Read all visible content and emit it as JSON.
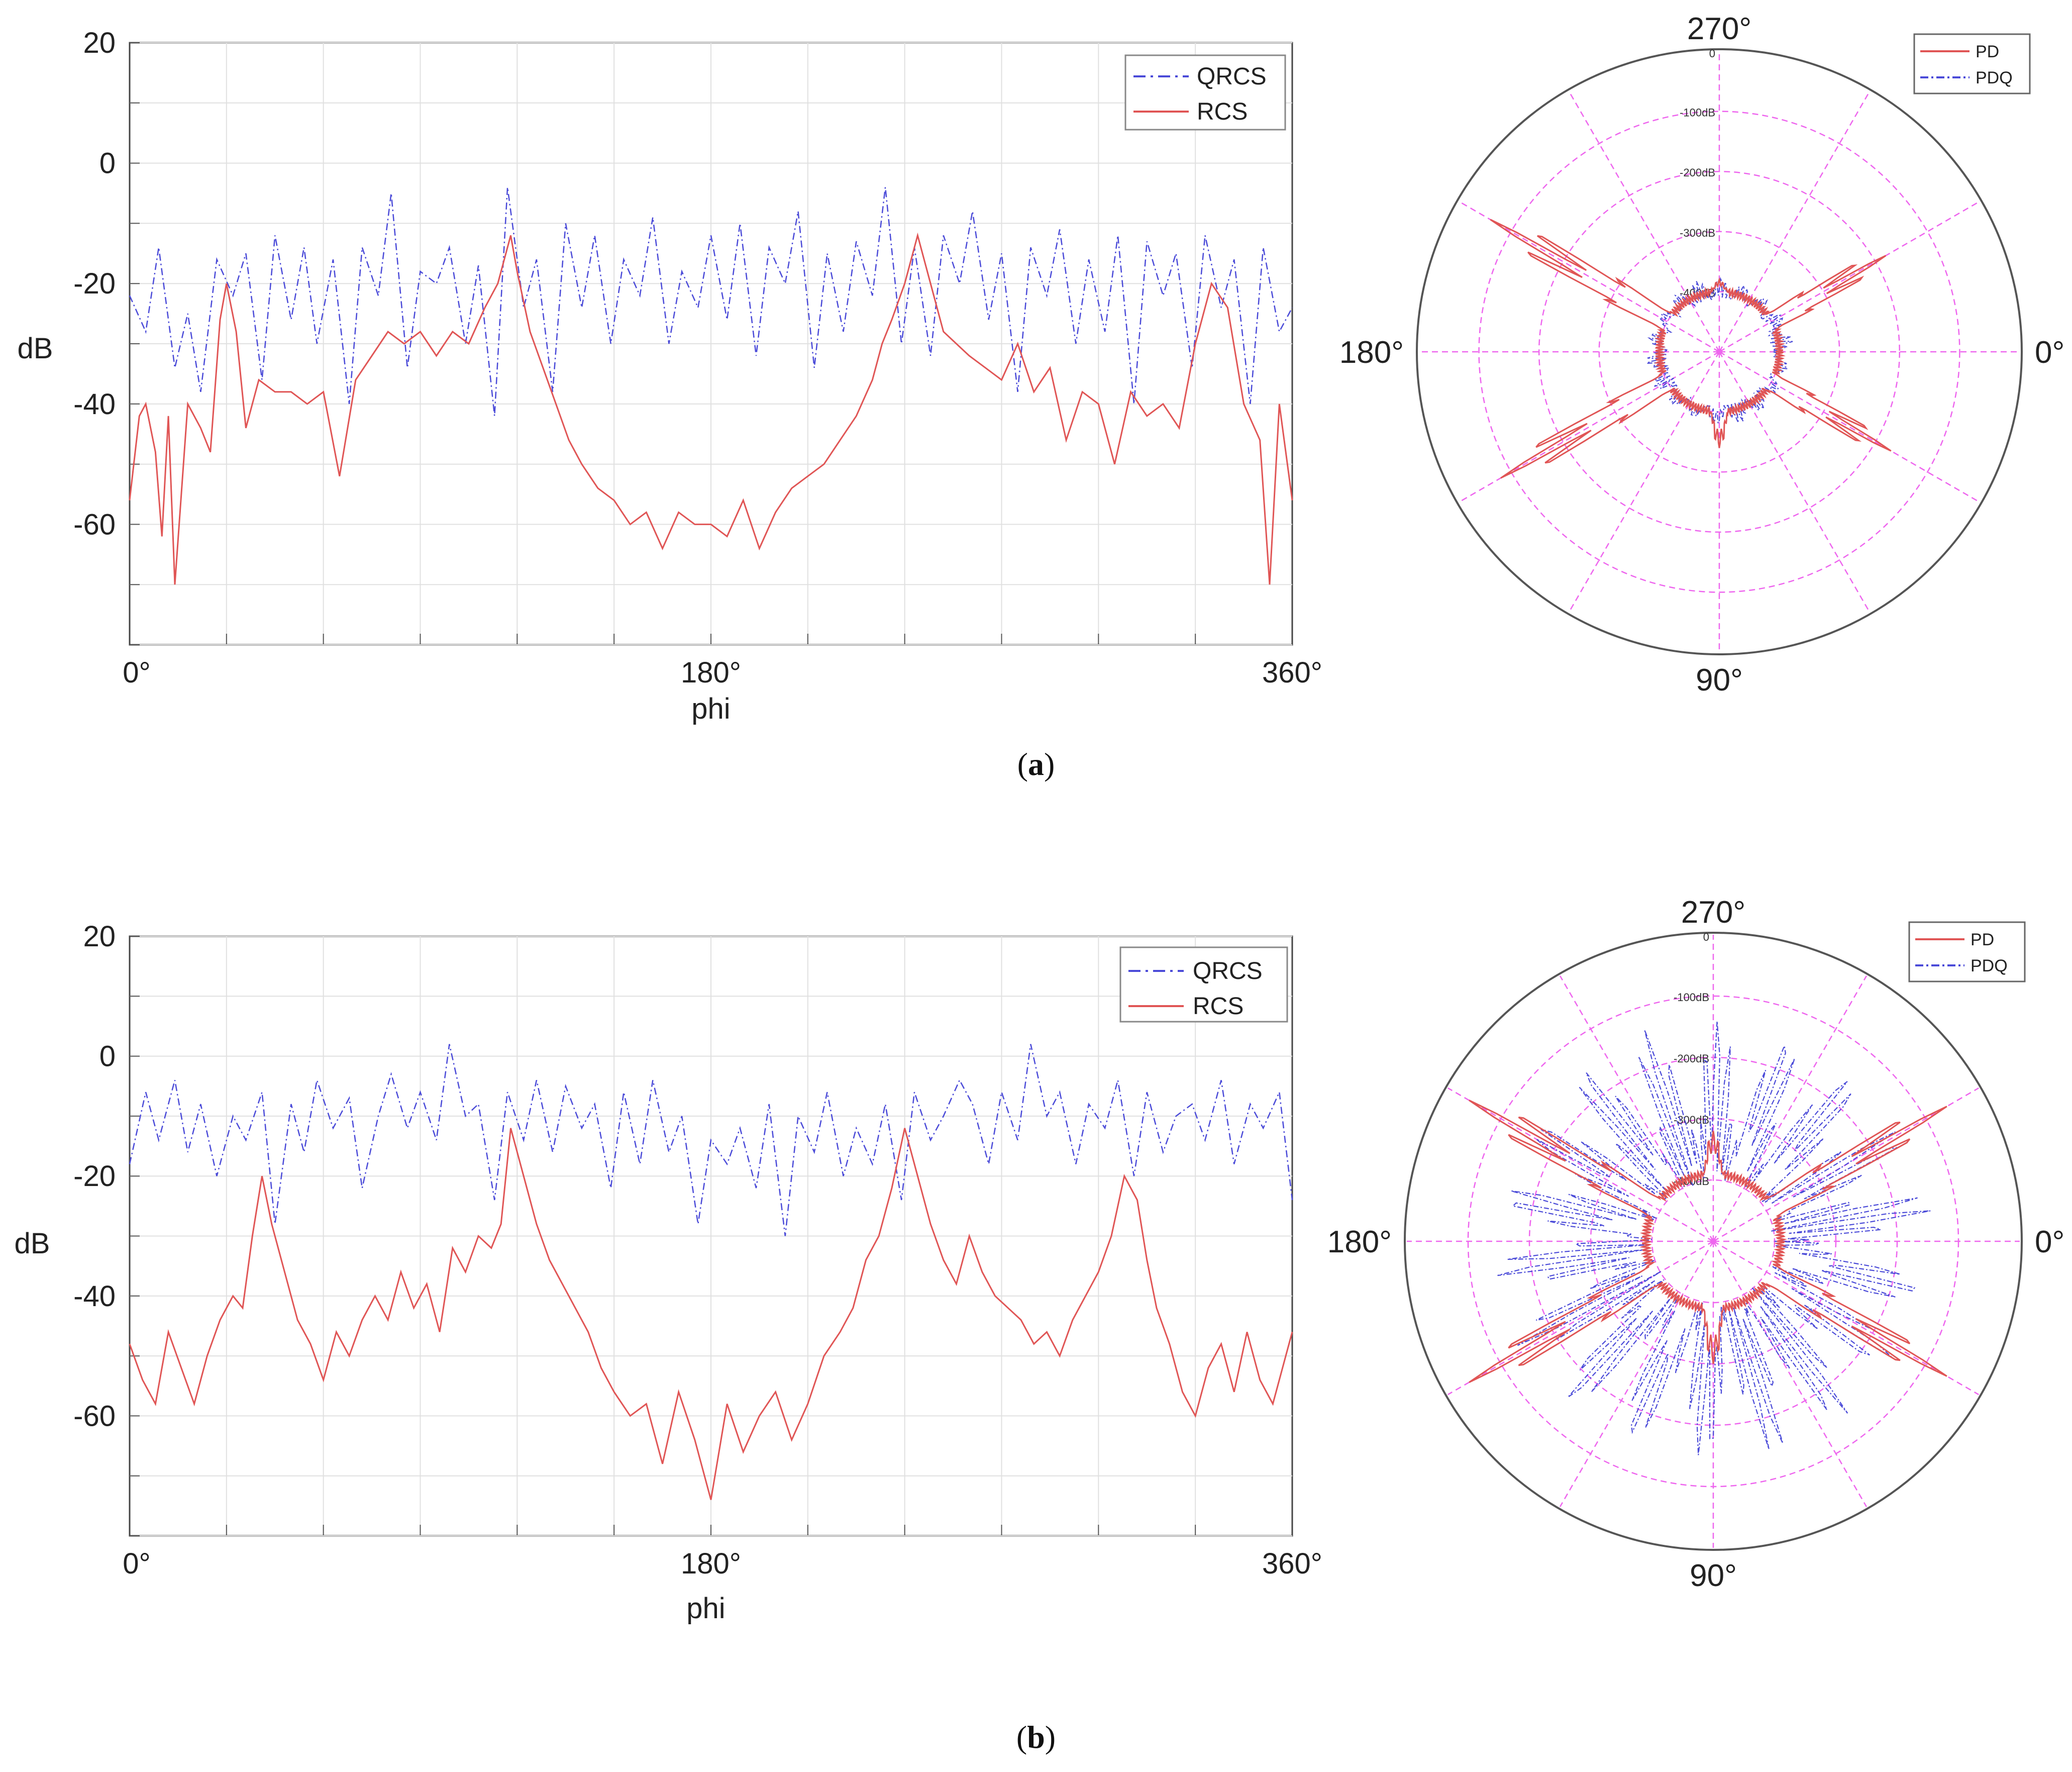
{
  "figure": {
    "captions": [
      "(a)",
      "(b)"
    ],
    "caption_letters": [
      "a",
      "b"
    ]
  },
  "colors": {
    "rcs": "#e05555",
    "qrcs": "#4a4ad8",
    "grid": "#e0e0e0",
    "polar_grid": "#ee66ee"
  },
  "chart_data": [
    {
      "id": "a-cartesian",
      "type": "line",
      "xlabel": "phi",
      "ylabel": "dB",
      "xlim": [
        0,
        360
      ],
      "ylim": [
        -80,
        20
      ],
      "x_tick_labels": [
        "0°",
        "180°",
        "360°"
      ],
      "y_ticks": [
        20,
        0,
        -20,
        -40,
        -60
      ],
      "y_tick_labels": [
        "20",
        "0",
        "-20",
        "-40",
        "-60"
      ],
      "grid": true,
      "legend": {
        "position": "top-right",
        "entries": [
          "QRCS",
          "RCS"
        ]
      },
      "series": [
        {
          "name": "QRCS",
          "style": "dash-dot",
          "x": [
            0,
            5,
            9,
            14,
            18,
            22,
            27,
            32,
            36,
            41,
            45,
            50,
            54,
            58,
            63,
            68,
            72,
            77,
            81,
            86,
            90,
            95,
            99,
            104,
            108,
            113,
            117,
            122,
            126,
            131,
            135,
            140,
            144,
            149,
            153,
            158,
            162,
            167,
            171,
            176,
            180,
            185,
            189,
            194,
            198,
            203,
            207,
            212,
            216,
            221,
            225,
            230,
            234,
            239,
            243,
            248,
            252,
            257,
            261,
            266,
            270,
            275,
            279,
            284,
            288,
            293,
            297,
            302,
            306,
            311,
            315,
            320,
            324,
            329,
            333,
            338,
            342,
            347,
            351,
            356,
            360
          ],
          "values": [
            -22,
            -28,
            -14,
            -34,
            -25,
            -38,
            -16,
            -22,
            -15,
            -36,
            -12,
            -26,
            -14,
            -30,
            -16,
            -40,
            -14,
            -22,
            -5,
            -34,
            -18,
            -20,
            -14,
            -30,
            -17,
            -42,
            -4,
            -24,
            -16,
            -38,
            -10,
            -24,
            -12,
            -30,
            -16,
            -22,
            -9,
            -30,
            -18,
            -24,
            -12,
            -26,
            -10,
            -32,
            -14,
            -20,
            -8,
            -34,
            -15,
            -28,
            -13,
            -22,
            -4,
            -30,
            -14,
            -32,
            -12,
            -20,
            -8,
            -26,
            -15,
            -38,
            -14,
            -22,
            -11,
            -30,
            -16,
            -28,
            -12,
            -40,
            -13,
            -22,
            -15,
            -34,
            -12,
            -24,
            -16,
            -40,
            -14,
            -28,
            -24
          ]
        },
        {
          "name": "RCS",
          "style": "solid",
          "x": [
            0,
            3,
            5,
            8,
            10,
            12,
            14,
            18,
            22,
            25,
            28,
            30,
            33,
            36,
            40,
            45,
            50,
            55,
            60,
            65,
            70,
            75,
            80,
            85,
            90,
            95,
            100,
            105,
            110,
            114,
            118,
            120,
            124,
            128,
            132,
            136,
            140,
            145,
            150,
            155,
            160,
            165,
            170,
            175,
            180,
            185,
            190,
            195,
            200,
            205,
            210,
            215,
            220,
            225,
            230,
            233,
            236,
            240,
            244,
            248,
            252,
            256,
            260,
            265,
            270,
            275,
            280,
            285,
            290,
            295,
            300,
            305,
            310,
            315,
            320,
            325,
            330,
            335,
            340,
            345,
            350,
            353,
            356,
            360
          ],
          "values": [
            -56,
            -42,
            -40,
            -48,
            -62,
            -42,
            -70,
            -40,
            -44,
            -48,
            -26,
            -20,
            -28,
            -44,
            -36,
            -38,
            -38,
            -40,
            -38,
            -52,
            -36,
            -32,
            -28,
            -30,
            -28,
            -32,
            -28,
            -30,
            -24,
            -20,
            -12,
            -18,
            -28,
            -34,
            -40,
            -46,
            -50,
            -54,
            -56,
            -60,
            -58,
            -64,
            -58,
            -60,
            -60,
            -62,
            -56,
            -64,
            -58,
            -54,
            -52,
            -50,
            -46,
            -42,
            -36,
            -30,
            -26,
            -20,
            -12,
            -20,
            -28,
            -30,
            -32,
            -34,
            -36,
            -30,
            -38,
            -34,
            -46,
            -38,
            -40,
            -50,
            -38,
            -42,
            -40,
            -44,
            -30,
            -20,
            -24,
            -40,
            -46,
            -70,
            -40,
            -56
          ]
        }
      ]
    },
    {
      "id": "a-polar",
      "type": "line",
      "projection": "polar",
      "angle_labels": [
        "270°",
        "0°",
        "90°",
        "180°"
      ],
      "radial_labels": [
        "0",
        "-100dB",
        "-200dB",
        "-300dB",
        "-400dB"
      ],
      "radial_range_db": [
        -500,
        0
      ],
      "legend": {
        "position": "top-right",
        "entries": [
          "PD",
          "PDQ"
        ]
      },
      "series": [
        {
          "name": "PD",
          "peaks": [
            {
              "angle_deg": 330,
              "level_db": -180
            },
            {
              "angle_deg": 30,
              "level_db": -170
            },
            {
              "angle_deg": 150,
              "level_db": -80
            },
            {
              "angle_deg": 210,
              "level_db": -60
            },
            {
              "angle_deg": 90,
              "level_db": -340
            },
            {
              "angle_deg": 270,
              "level_db": -380
            }
          ],
          "baseline_db": -400
        },
        {
          "name": "PDQ",
          "baseline_db": -410,
          "spread_db": 30
        }
      ]
    },
    {
      "id": "b-cartesian",
      "type": "line",
      "xlabel": "phi",
      "ylabel": "dB",
      "xlim": [
        0,
        360
      ],
      "ylim": [
        -80,
        20
      ],
      "x_tick_labels": [
        "0°",
        "180°",
        "360°"
      ],
      "y_ticks": [
        20,
        0,
        -20,
        -40,
        -60
      ],
      "y_tick_labels": [
        "20",
        "0",
        "-20",
        "-40",
        "-60"
      ],
      "grid": true,
      "legend": {
        "position": "top-right",
        "entries": [
          "QRCS",
          "RCS"
        ]
      },
      "series": [
        {
          "name": "QRCS",
          "style": "dash-dot",
          "x": [
            0,
            5,
            9,
            14,
            18,
            22,
            27,
            32,
            36,
            41,
            45,
            50,
            54,
            58,
            63,
            68,
            72,
            77,
            81,
            86,
            90,
            95,
            99,
            104,
            108,
            113,
            117,
            122,
            126,
            131,
            135,
            140,
            144,
            149,
            153,
            158,
            162,
            167,
            171,
            176,
            180,
            185,
            189,
            194,
            198,
            203,
            207,
            212,
            216,
            221,
            225,
            230,
            234,
            239,
            243,
            248,
            252,
            257,
            261,
            266,
            270,
            275,
            279,
            284,
            288,
            293,
            297,
            302,
            306,
            311,
            315,
            320,
            324,
            329,
            333,
            338,
            342,
            347,
            351,
            356,
            360
          ],
          "values": [
            -18,
            -6,
            -14,
            -4,
            -16,
            -8,
            -20,
            -10,
            -14,
            -6,
            -28,
            -8,
            -16,
            -4,
            -12,
            -7,
            -22,
            -10,
            -3,
            -12,
            -6,
            -14,
            2,
            -10,
            -8,
            -24,
            -6,
            -14,
            -4,
            -16,
            -5,
            -12,
            -8,
            -22,
            -6,
            -18,
            -4,
            -16,
            -10,
            -28,
            -14,
            -18,
            -12,
            -22,
            -8,
            -30,
            -10,
            -16,
            -6,
            -20,
            -12,
            -18,
            -8,
            -24,
            -6,
            -14,
            -10,
            -4,
            -8,
            -18,
            -6,
            -14,
            2,
            -10,
            -6,
            -18,
            -8,
            -12,
            -4,
            -20,
            -6,
            -16,
            -10,
            -8,
            -14,
            -4,
            -18,
            -8,
            -12,
            -6,
            -24
          ]
        },
        {
          "name": "RCS",
          "style": "solid",
          "x": [
            0,
            4,
            8,
            12,
            16,
            20,
            24,
            28,
            32,
            35,
            38,
            41,
            44,
            48,
            52,
            56,
            60,
            64,
            68,
            72,
            76,
            80,
            84,
            88,
            92,
            96,
            100,
            104,
            108,
            112,
            115,
            118,
            122,
            126,
            130,
            134,
            138,
            142,
            146,
            150,
            155,
            160,
            165,
            170,
            175,
            180,
            185,
            190,
            195,
            200,
            205,
            210,
            215,
            220,
            224,
            228,
            232,
            236,
            240,
            244,
            248,
            252,
            256,
            260,
            264,
            268,
            272,
            276,
            280,
            284,
            288,
            292,
            296,
            300,
            304,
            308,
            312,
            315,
            318,
            322,
            326,
            330,
            334,
            338,
            342,
            346,
            350,
            354,
            358,
            360
          ],
          "values": [
            -48,
            -54,
            -58,
            -46,
            -52,
            -58,
            -50,
            -44,
            -40,
            -42,
            -30,
            -20,
            -28,
            -36,
            -44,
            -48,
            -54,
            -46,
            -50,
            -44,
            -40,
            -44,
            -36,
            -42,
            -38,
            -46,
            -32,
            -36,
            -30,
            -32,
            -28,
            -12,
            -20,
            -28,
            -34,
            -38,
            -42,
            -46,
            -52,
            -56,
            -60,
            -58,
            -68,
            -56,
            -64,
            -74,
            -58,
            -66,
            -60,
            -56,
            -64,
            -58,
            -50,
            -46,
            -42,
            -34,
            -30,
            -22,
            -12,
            -20,
            -28,
            -34,
            -38,
            -30,
            -36,
            -40,
            -42,
            -44,
            -48,
            -46,
            -50,
            -44,
            -40,
            -36,
            -30,
            -20,
            -24,
            -34,
            -42,
            -48,
            -56,
            -60,
            -52,
            -48,
            -56,
            -46,
            -54,
            -58,
            -50,
            -46
          ]
        }
      ]
    },
    {
      "id": "b-polar",
      "type": "line",
      "projection": "polar",
      "angle_labels": [
        "270°",
        "0°",
        "90°",
        "180°"
      ],
      "radial_labels": [
        "0",
        "-100dB",
        "-200dB",
        "-300dB",
        "-400dB"
      ],
      "radial_range_db": [
        -500,
        0
      ],
      "legend": {
        "position": "top-right",
        "entries": [
          "PD",
          "PDQ"
        ]
      },
      "series": [
        {
          "name": "PD",
          "peaks": [
            {
              "angle_deg": 330,
              "level_db": -60
            },
            {
              "angle_deg": 30,
              "level_db": -60
            },
            {
              "angle_deg": 150,
              "level_db": -40
            },
            {
              "angle_deg": 210,
              "level_db": -40
            },
            {
              "angle_deg": 90,
              "level_db": -300
            },
            {
              "angle_deg": 270,
              "level_db": -320
            }
          ],
          "baseline_db": -390
        },
        {
          "name": "PDQ",
          "baseline_db": -400,
          "spread_db": 260
        }
      ]
    }
  ]
}
